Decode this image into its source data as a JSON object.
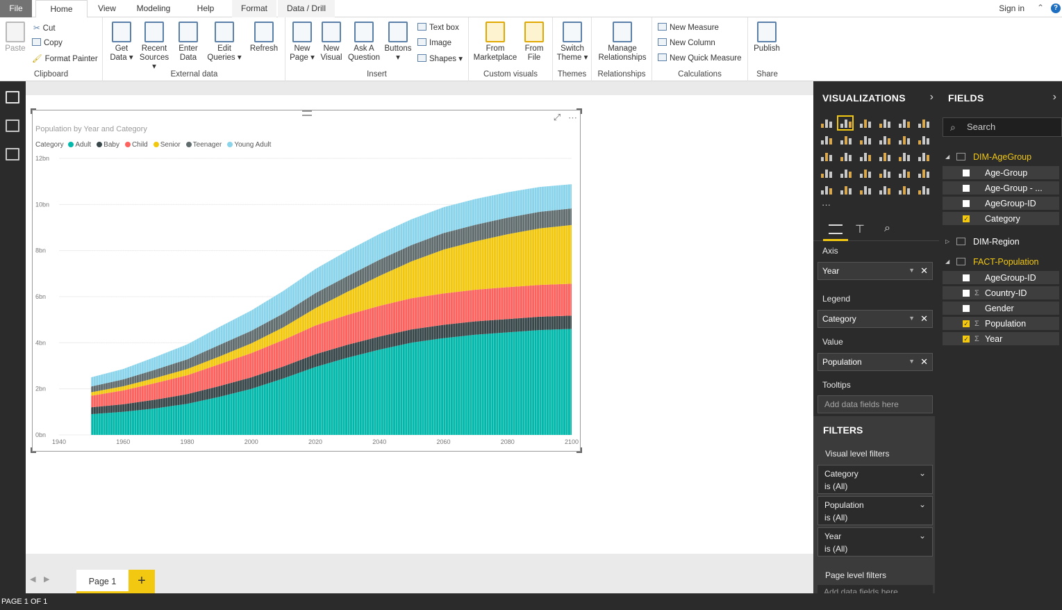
{
  "tabs": {
    "file": "File",
    "home": "Home",
    "view": "View",
    "modeling": "Modeling",
    "help": "Help",
    "format": "Format",
    "data_drill": "Data / Drill",
    "signin": "Sign in"
  },
  "ribbon": {
    "clipboard": {
      "paste": "Paste",
      "cut": "Cut",
      "copy": "Copy",
      "format_painter": "Format Painter",
      "label": "Clipboard"
    },
    "external": {
      "get_data_1": "Get",
      "get_data_2": "Data",
      "recent_1": "Recent",
      "recent_2": "Sources",
      "enter_1": "Enter",
      "enter_2": "Data",
      "edit_1": "Edit",
      "edit_2": "Queries",
      "refresh": "Refresh",
      "label": "External data"
    },
    "insert": {
      "newpage_1": "New",
      "newpage_2": "Page",
      "newvisual_1": "New",
      "newvisual_2": "Visual",
      "ask_1": "Ask A",
      "ask_2": "Question",
      "buttons": "Buttons",
      "textbox": "Text box",
      "image": "Image",
      "shapes": "Shapes",
      "label": "Insert"
    },
    "custom": {
      "market_1": "From",
      "market_2": "Marketplace",
      "file_1": "From",
      "file_2": "File",
      "label": "Custom visuals"
    },
    "themes": {
      "switch_1": "Switch",
      "switch_2": "Theme",
      "label": "Themes"
    },
    "relationships": {
      "manage_1": "Manage",
      "manage_2": "Relationships",
      "label": "Relationships"
    },
    "calculations": {
      "new_measure": "New Measure",
      "new_column": "New Column",
      "new_quick": "New Quick Measure",
      "label": "Calculations"
    },
    "share": {
      "publish": "Publish",
      "label": "Share"
    }
  },
  "pages": {
    "page1": "Page 1",
    "add": "+",
    "status": "PAGE 1 OF 1"
  },
  "visual": {
    "title": "Population by Year and Category",
    "legend_title": "Category"
  },
  "chart_data": {
    "type": "area",
    "title": "Population by Year and Category",
    "legend_title": "Category",
    "x": [
      1950,
      1960,
      1970,
      1980,
      1990,
      2000,
      2010,
      2020,
      2030,
      2040,
      2050,
      2060,
      2070,
      2080,
      2090,
      2100
    ],
    "xticks": [
      "1940",
      "1960",
      "1980",
      "2000",
      "2020",
      "2040",
      "2060",
      "2080",
      "2100"
    ],
    "yticks": [
      "0bn",
      "2bn",
      "4bn",
      "6bn",
      "8bn",
      "10bn",
      "12bn"
    ],
    "xlim": [
      1940,
      2100
    ],
    "ylim": [
      0,
      12
    ],
    "stacked": true,
    "series": [
      {
        "name": "Adult",
        "color": "#01b8aa",
        "values": [
          0.9,
          1.0,
          1.15,
          1.35,
          1.65,
          2.0,
          2.45,
          2.95,
          3.35,
          3.7,
          4.0,
          4.2,
          4.35,
          4.45,
          4.55,
          4.6
        ]
      },
      {
        "name": "Baby",
        "color": "#374649",
        "values": [
          0.3,
          0.33,
          0.38,
          0.42,
          0.47,
          0.5,
          0.52,
          0.55,
          0.56,
          0.57,
          0.58,
          0.58,
          0.58,
          0.58,
          0.58,
          0.58
        ]
      },
      {
        "name": "Child",
        "color": "#fd625e",
        "values": [
          0.5,
          0.6,
          0.72,
          0.82,
          0.95,
          1.05,
          1.15,
          1.25,
          1.3,
          1.33,
          1.35,
          1.36,
          1.37,
          1.38,
          1.38,
          1.38
        ]
      },
      {
        "name": "Senior",
        "color": "#f2c80f",
        "values": [
          0.15,
          0.18,
          0.22,
          0.27,
          0.33,
          0.42,
          0.55,
          0.75,
          1.0,
          1.3,
          1.6,
          1.9,
          2.1,
          2.3,
          2.45,
          2.55
        ]
      },
      {
        "name": "Teenager",
        "color": "#5f6b6d",
        "values": [
          0.25,
          0.3,
          0.36,
          0.42,
          0.5,
          0.55,
          0.6,
          0.65,
          0.68,
          0.7,
          0.71,
          0.72,
          0.72,
          0.72,
          0.72,
          0.72
        ]
      },
      {
        "name": "Young Adult",
        "color": "#8ad4eb",
        "values": [
          0.4,
          0.45,
          0.55,
          0.65,
          0.78,
          0.88,
          0.98,
          1.05,
          1.1,
          1.12,
          1.12,
          1.12,
          1.12,
          1.1,
          1.08,
          1.05
        ]
      }
    ]
  },
  "viz_panel": {
    "title": "VISUALIZATIONS",
    "axis": "Axis",
    "axis_field": "Year",
    "legend": "Legend",
    "legend_field": "Category",
    "value": "Value",
    "value_field": "Population",
    "tooltips": "Tooltips",
    "tooltips_placeholder": "Add data fields here",
    "more": "···"
  },
  "filters": {
    "title": "FILTERS",
    "visual_level": "Visual level filters",
    "items": [
      {
        "name": "Category",
        "state": "is (All)"
      },
      {
        "name": "Population",
        "state": "is (All)"
      },
      {
        "name": "Year",
        "state": "is (All)"
      }
    ],
    "page_level": "Page level filters",
    "page_placeholder": "Add data fields here"
  },
  "fields_panel": {
    "title": "FIELDS",
    "search_placeholder": "Search",
    "tables": [
      {
        "name": "DIM-AgeGroup",
        "fields": [
          {
            "name": "Age-Group",
            "checked": false,
            "sigma": false
          },
          {
            "name": "Age-Group - ...",
            "checked": false,
            "sigma": false
          },
          {
            "name": "AgeGroup-ID",
            "checked": false,
            "sigma": false
          },
          {
            "name": "Category",
            "checked": true,
            "sigma": false
          }
        ]
      },
      {
        "name": "DIM-Region",
        "fields": []
      },
      {
        "name": "FACT-Population",
        "fields": [
          {
            "name": "AgeGroup-ID",
            "checked": false,
            "sigma": false
          },
          {
            "name": "Country-ID",
            "checked": false,
            "sigma": true
          },
          {
            "name": "Gender",
            "checked": false,
            "sigma": false
          },
          {
            "name": "Population",
            "checked": true,
            "sigma": true
          },
          {
            "name": "Year",
            "checked": true,
            "sigma": true
          }
        ]
      }
    ]
  }
}
